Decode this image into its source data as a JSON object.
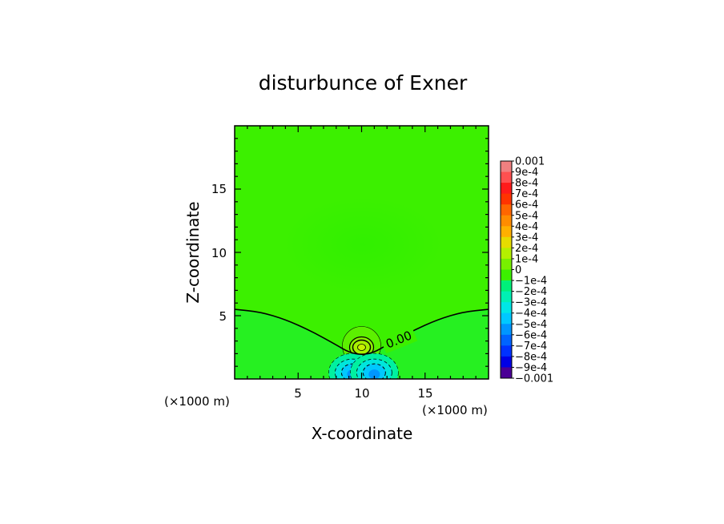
{
  "chart_data": {
    "type": "heatmap",
    "title": "disturbunce of Exner",
    "xlabel": "X-coordinate",
    "ylabel": "Z-coordinate",
    "x_unit": "(×1000 m)",
    "y_unit": "(×1000 m)",
    "xlim": [
      0,
      20
    ],
    "ylim": [
      0,
      20
    ],
    "x_ticks": [
      "5",
      "10",
      "15"
    ],
    "y_ticks": [
      "5",
      "10",
      "15"
    ],
    "contour_label": "0.00",
    "zero_contour": {
      "x": [
        0,
        2,
        4,
        6,
        8,
        9,
        10,
        11,
        12,
        14,
        16,
        18,
        20
      ],
      "z": [
        5.5,
        5.3,
        4.7,
        3.8,
        2.7,
        2.1,
        1.9,
        2.1,
        2.7,
        3.8,
        4.7,
        5.3,
        5.5
      ]
    },
    "features": [
      {
        "kind": "positive-max",
        "x": 10.0,
        "z": 2.5,
        "value": 0.0002
      },
      {
        "kind": "negative-min",
        "x": 9.3,
        "z": 0.5,
        "value": -0.0004
      },
      {
        "kind": "negative-min",
        "x": 11.0,
        "z": 0.5,
        "value": -0.0004
      }
    ],
    "colorbar": {
      "labels": [
        "0.001",
        "9e-4",
        "8e-4",
        "7e-4",
        "6e-4",
        "5e-4",
        "4e-4",
        "3e-4",
        "2e-4",
        "1e-4",
        "0",
        "−1e-4",
        "−2e-4",
        "−3e-4",
        "−4e-4",
        "−5e-4",
        "−6e-4",
        "−7e-4",
        "−8e-4",
        "−9e-4",
        "−0.001"
      ],
      "colors": [
        "#f08080",
        "#ff5050",
        "#ff1a1a",
        "#ff3300",
        "#ff6600",
        "#ff8c00",
        "#ffb000",
        "#e6dc00",
        "#b4f000",
        "#78f000",
        "#3cf000",
        "#00f07a",
        "#00f0b4",
        "#00e6e6",
        "#00c8ff",
        "#0096ff",
        "#0064ff",
        "#0032ff",
        "#0000e6",
        "#4b0096"
      ]
    }
  }
}
